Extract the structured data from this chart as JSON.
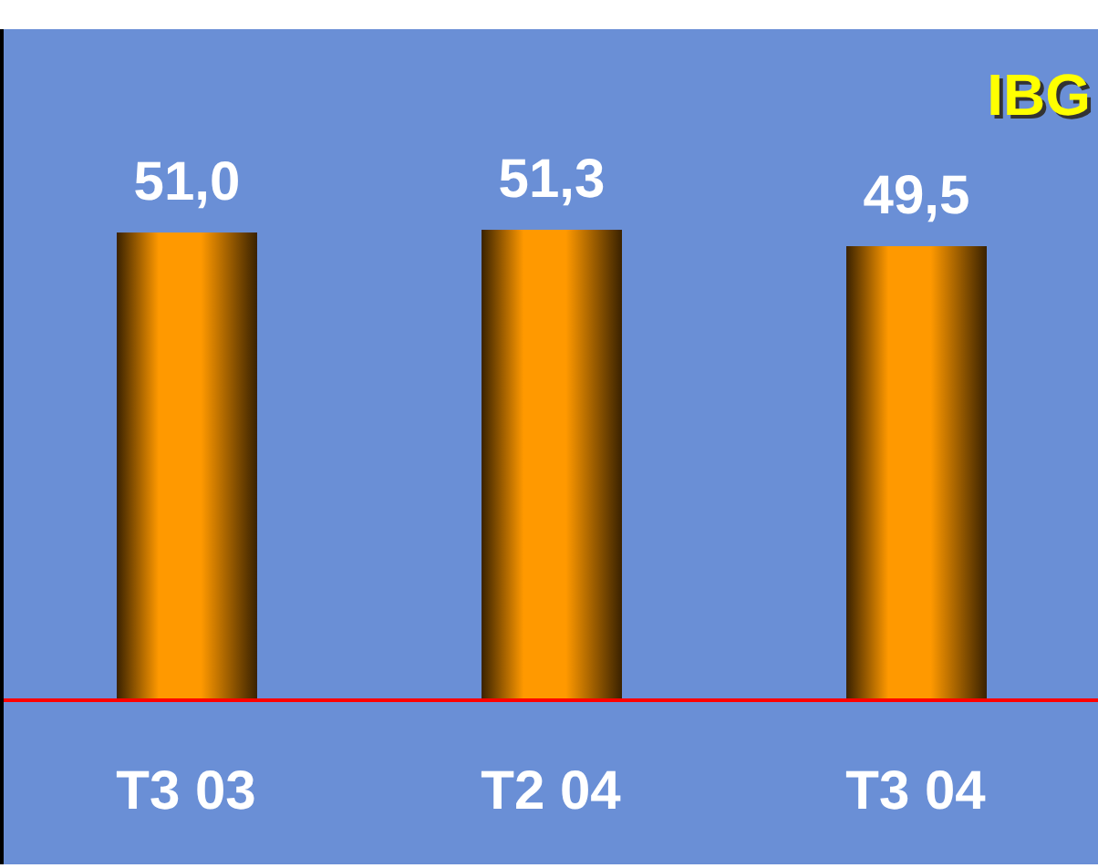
{
  "chart_data": {
    "type": "bar",
    "title": "IBG",
    "categories": [
      "T3 03",
      "T2 04",
      "T3 04"
    ],
    "values": [
      51.0,
      51.3,
      49.5
    ],
    "value_labels": [
      "51,0",
      "51,3",
      "49,5"
    ],
    "color": "#ff9900"
  }
}
